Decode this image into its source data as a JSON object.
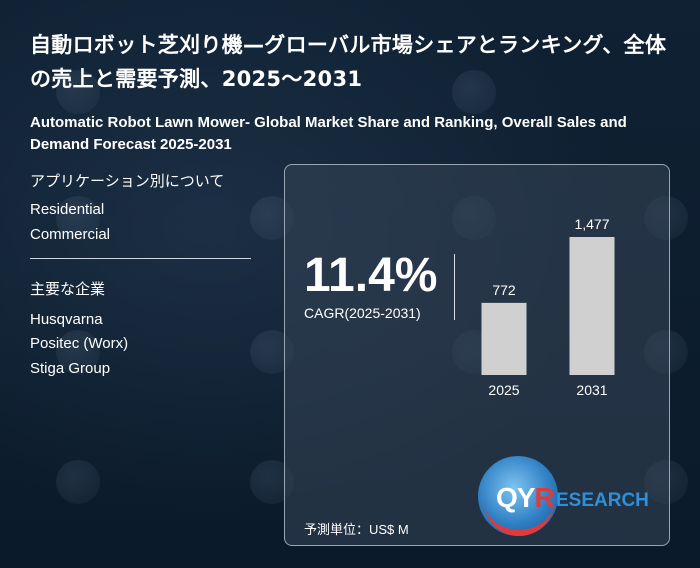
{
  "title_ja": "自動ロボット芝刈り機—グローバル市場シェアとランキング、全体の売上と需要予測、2025～2031",
  "title_en": "Automatic Robot Lawn Mower- Global Market Share and Ranking, Overall Sales and Demand Forecast 2025-2031",
  "application": {
    "heading": "アプリケーション別について",
    "items": [
      "Residential",
      "Commercial"
    ]
  },
  "companies": {
    "heading": "主要な企業",
    "items": [
      "Husqvarna",
      "Positec (Worx)",
      "Stiga Group"
    ]
  },
  "cagr": {
    "value": "11.4%",
    "label": "CAGR(2025-2031)"
  },
  "unit_label": "予測単位：US$ M",
  "logo": {
    "brand_q": "Q",
    "brand_y": "Y",
    "brand_r": "R",
    "research": "ESEARCH"
  },
  "colors": {
    "background": "#0c1b2c",
    "bar": "#d0d0d0",
    "logo_red": "#e23a3a",
    "logo_blue": "#2f8fd8"
  },
  "chart_data": {
    "type": "bar",
    "categories": [
      "2025",
      "2031"
    ],
    "values": [
      772,
      1477
    ],
    "value_labels": [
      "772",
      "1,477"
    ],
    "title": "",
    "xlabel": "",
    "ylabel": "",
    "ylim": [
      0,
      1477
    ],
    "grid": false
  }
}
